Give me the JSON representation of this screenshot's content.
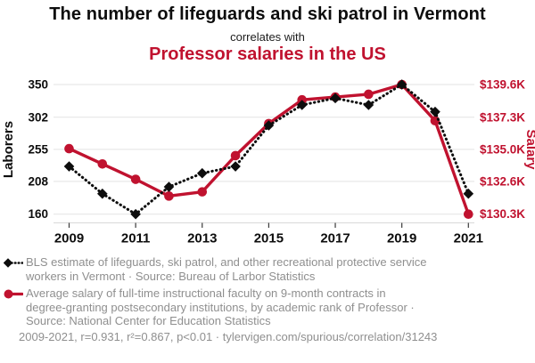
{
  "header": {
    "title": "The number of lifeguards and ski patrol in Vermont",
    "connector": "correlates with",
    "title2": "Professor salaries in the US"
  },
  "colors": {
    "series1": "#0d0d0d",
    "series2": "#c0122f",
    "grid": "#e3e3e3",
    "axis_baseline": "#d9d9d9",
    "tick_mark": "#3a3a3a",
    "gray_text": "#8f8f8f"
  },
  "chart_data": {
    "type": "line",
    "x": [
      2009,
      2010,
      2011,
      2012,
      2013,
      2014,
      2015,
      2016,
      2017,
      2018,
      2019,
      2020,
      2021
    ],
    "series": [
      {
        "name": "Lifeguards, ski patrol, and other recreational protective service workers in Vermont",
        "axis": "left",
        "color": "#0d0d0d",
        "marker": "diamond",
        "line_style": "dotted",
        "values": [
          230,
          190,
          160,
          200,
          220,
          230,
          290,
          320,
          330,
          320,
          350,
          310,
          190
        ]
      },
      {
        "name": "Average salary of full-time instructional faculty, rank of Professor (US)",
        "axis": "right",
        "color": "#c0122f",
        "marker": "circle",
        "line_style": "solid",
        "values": [
          135.0,
          133.9,
          132.8,
          131.6,
          131.9,
          134.5,
          136.8,
          138.5,
          138.7,
          138.9,
          139.6,
          137.0,
          130.3
        ]
      }
    ],
    "left_axis": {
      "label": "Laborers",
      "color": "#0d0d0d",
      "tick_labels": [
        "350",
        "302",
        "255",
        "208",
        "160"
      ],
      "tick_values": [
        350,
        302,
        255,
        208,
        160
      ],
      "min": 160,
      "max": 350
    },
    "right_axis": {
      "label": "Salary",
      "color": "#c0122f",
      "tick_labels": [
        "$139.6K",
        "$137.3K",
        "$135.0K",
        "$132.6K",
        "$130.3K"
      ],
      "tick_values": [
        139.6,
        137.3,
        135.0,
        132.6,
        130.3
      ],
      "min": 130.3,
      "max": 139.6
    },
    "x_axis": {
      "tick_labels": [
        "2009",
        "2011",
        "2013",
        "2015",
        "2017",
        "2019",
        "2021"
      ],
      "tick_values": [
        2009,
        2011,
        2013,
        2015,
        2017,
        2019,
        2021
      ],
      "min": 2009,
      "max": 2021
    },
    "grid": "horizontal-only",
    "legend_position": "bottom-left"
  },
  "legend": [
    {
      "marker": "diamond-dotted",
      "text": "BLS estimate of lifeguards, ski patrol, and other recreational protective service\nworkers in Vermont · Source: Bureau of Larbor Statistics"
    },
    {
      "marker": "circle-solid",
      "text": "Average salary of full-time instructional faculty on 9-month contracts in\ndegree-granting postsecondary institutions, by academic rank of Professor ·\nSource: National Center for Education Statistics"
    }
  ],
  "footer": {
    "stats": "2009-2021, r=0.931, r²=0.867, p<0.01 · tylervigen.com/spurious/correlation/31243"
  }
}
